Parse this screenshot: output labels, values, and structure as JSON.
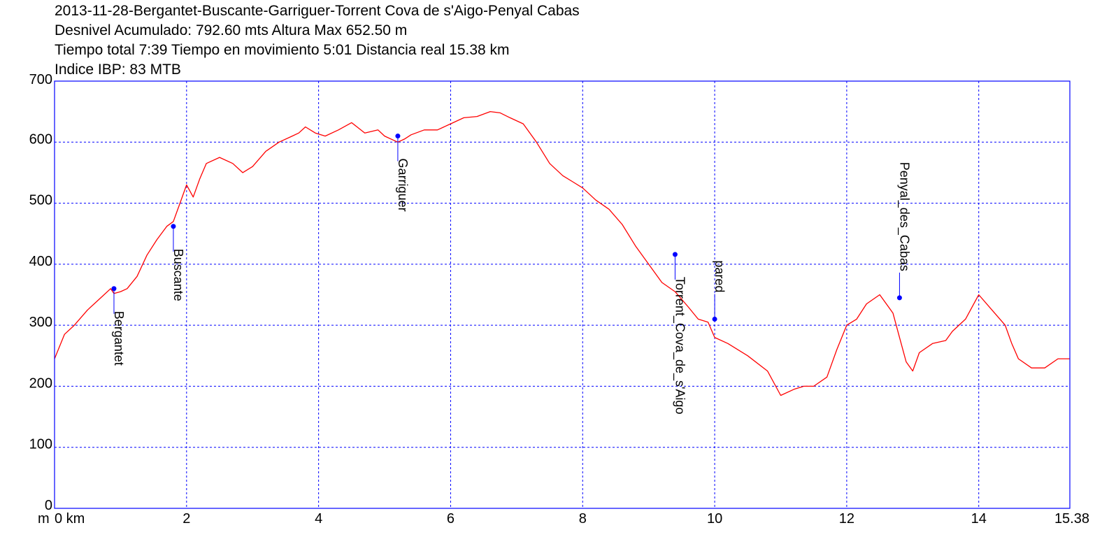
{
  "header": {
    "title": "2013-11-28-Bergantet-Buscante-Garriguer-Torrent Cova de s'Aigo-Penyal Cabas",
    "line2": "Desnivel Acumulado: 792.60 mts  Altura Max 652.50 m",
    "line3": "Tiempo total 7:39 Tiempo en movimiento 5:01 Distancia real 15.38 km",
    "line4": "Indice IBP: 83 MTB"
  },
  "chart_data": {
    "type": "line",
    "title": "2013-11-28-Bergantet-Buscante-Garriguer-Torrent Cova de s'Aigo-Penyal Cabas",
    "xlabel": "km",
    "ylabel": "m",
    "xlim": [
      0,
      15.38
    ],
    "ylim": [
      0,
      700
    ],
    "grid": true,
    "x_ticks": [
      {
        "value": 0,
        "label": "0 km"
      },
      {
        "value": 2,
        "label": "2"
      },
      {
        "value": 4,
        "label": "4"
      },
      {
        "value": 6,
        "label": "6"
      },
      {
        "value": 8,
        "label": "8"
      },
      {
        "value": 10,
        "label": "10"
      },
      {
        "value": 12,
        "label": "12"
      },
      {
        "value": 14,
        "label": "14"
      },
      {
        "value": 15.38,
        "label": "15.38"
      }
    ],
    "y_ticks": [
      {
        "value": 0,
        "label": "0"
      },
      {
        "value": 100,
        "label": "100"
      },
      {
        "value": 200,
        "label": "200"
      },
      {
        "value": 300,
        "label": "300"
      },
      {
        "value": 400,
        "label": "400"
      },
      {
        "value": 500,
        "label": "500"
      },
      {
        "value": 600,
        "label": "600"
      },
      {
        "value": 700,
        "label": "700"
      }
    ],
    "y_unit_label": "m",
    "colors": {
      "profile": "#ff0000",
      "grid": "#0000ff",
      "frame": "#0000ff",
      "waypoint": "#0000ff"
    },
    "series": [
      {
        "x": [
          0,
          0.15,
          0.3,
          0.5,
          0.7,
          0.85,
          0.9,
          1.0,
          1.1,
          1.25,
          1.4,
          1.55,
          1.7,
          1.8,
          1.9,
          2.0,
          2.1,
          2.2,
          2.3,
          2.5,
          2.7,
          2.85,
          3.0,
          3.2,
          3.4,
          3.6,
          3.7,
          3.8,
          3.95,
          4.1,
          4.3,
          4.5,
          4.7,
          4.9,
          5.0,
          5.2,
          5.3,
          5.4,
          5.6,
          5.8,
          6.0,
          6.2,
          6.4,
          6.6,
          6.75,
          6.9,
          7.1,
          7.3,
          7.5,
          7.7,
          7.85,
          8.0,
          8.2,
          8.4,
          8.6,
          8.8,
          9.0,
          9.2,
          9.4,
          9.6,
          9.75,
          9.9,
          10.0,
          10.2,
          10.5,
          10.8,
          11.0,
          11.2,
          11.35,
          11.5,
          11.7,
          11.85,
          12.0,
          12.15,
          12.3,
          12.5,
          12.7,
          12.8,
          12.9,
          13.0,
          13.1,
          13.3,
          13.5,
          13.6,
          13.8,
          14.0,
          14.2,
          14.4,
          14.5,
          14.6,
          14.8,
          15.0,
          15.2,
          15.38
        ],
        "y": [
          245,
          285,
          300,
          325,
          345,
          360,
          352,
          355,
          360,
          380,
          415,
          440,
          462,
          470,
          500,
          530,
          510,
          540,
          565,
          575,
          565,
          550,
          560,
          585,
          600,
          610,
          615,
          625,
          615,
          610,
          620,
          632,
          615,
          620,
          610,
          600,
          605,
          612,
          620,
          620,
          630,
          640,
          642,
          650,
          648,
          640,
          630,
          600,
          565,
          545,
          535,
          525,
          505,
          490,
          465,
          430,
          400,
          370,
          355,
          330,
          310,
          305,
          280,
          270,
          250,
          225,
          185,
          195,
          200,
          200,
          215,
          260,
          300,
          310,
          335,
          350,
          320,
          280,
          240,
          225,
          255,
          270,
          275,
          290,
          310,
          350,
          325,
          300,
          270,
          245,
          230,
          230,
          245,
          245
        ]
      }
    ],
    "waypoints": [
      {
        "name": "Bergantet",
        "x": 0.9,
        "y": 360
      },
      {
        "name": "Buscante",
        "x": 1.8,
        "y": 462
      },
      {
        "name": "Garriguer",
        "x": 5.2,
        "y": 610
      },
      {
        "name": "Torrent_Cova_de_s'Aigo",
        "x": 9.4,
        "y": 416
      },
      {
        "name": "pared",
        "x": 10.0,
        "y": 310
      },
      {
        "name": "Penyal_des_Cabas",
        "x": 12.8,
        "y": 345
      }
    ]
  }
}
